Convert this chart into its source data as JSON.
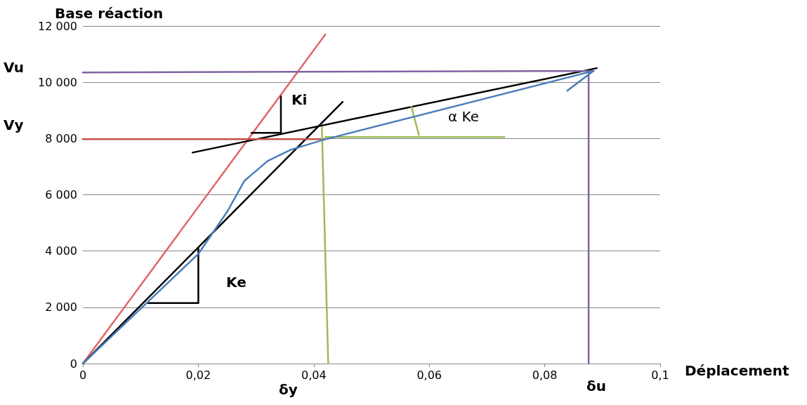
{
  "chart_data": {
    "type": "line",
    "xlabel": "Déplacement",
    "ylabel": "Base réaction",
    "xlim": [
      0,
      0.1
    ],
    "ylim": [
      0,
      12000
    ],
    "xticks": [
      0,
      {
        "value": 0.02,
        "label": "0,02"
      },
      {
        "value": 0.04,
        "label": "0,04"
      },
      {
        "value": 0.06,
        "label": "0,06"
      },
      {
        "value": 0.08,
        "label": "0,08"
      },
      {
        "value": 0.1,
        "label": "0,1"
      }
    ],
    "yticks": [
      0,
      {
        "value": 2000,
        "label": "2 000"
      },
      {
        "value": 4000,
        "label": "4 000"
      },
      {
        "value": 6000,
        "label": "6 000"
      },
      {
        "value": 8000,
        "label": "8 000"
      },
      {
        "value": 10000,
        "label": "10 000"
      },
      {
        "value": 12000,
        "label": "12 000"
      }
    ],
    "grid": "y",
    "marker": "none",
    "line_style": "solid",
    "series": [
      {
        "color": "#e06666",
        "x": [
          0,
          0.042
        ],
        "values": [
          0,
          11700
        ]
      },
      {
        "color": "#000000",
        "x": [
          0,
          0.045
        ],
        "values": [
          0,
          9300
        ]
      },
      {
        "color": "#000000",
        "x": [
          0.019,
          0.089
        ],
        "values": [
          7500,
          10500
        ]
      },
      {
        "color": "#c0504d",
        "x": [
          0,
          0.042
        ],
        "values": [
          7980,
          7980
        ]
      },
      {
        "color": "#9bbb59",
        "x": [
          0.042,
          0.073
        ],
        "values": [
          8050,
          8050
        ]
      },
      {
        "color": "#9bbb59",
        "x": [
          0.0414,
          0.0425
        ],
        "values": [
          8400,
          0
        ]
      },
      {
        "color": "#9bbb59",
        "x": [
          0.0569,
          0.0582
        ],
        "values": [
          9130,
          8130
        ]
      },
      {
        "color": "#8064a2",
        "x": [
          0,
          0.0885
        ],
        "values": [
          10350,
          10400
        ]
      },
      {
        "color": "#8064a2",
        "x": [
          0.0876,
          0.0876
        ],
        "values": [
          10400,
          0
        ]
      },
      {
        "color": "#000000",
        "x": [
          0.0112,
          0.02,
          0.02
        ],
        "values": [
          2150,
          2150,
          4100
        ]
      },
      {
        "color": "#000000",
        "x": [
          0.0292,
          0.0343,
          0.0343
        ],
        "values": [
          8200,
          8200,
          9500
        ]
      },
      {
        "color": "#4a7ebb",
        "x": [
          0,
          0.01,
          0.02,
          0.025,
          0.028,
          0.032,
          0.036,
          0.0416,
          0.0884,
          0.0839
        ],
        "values": [
          0,
          1950,
          3900,
          5400,
          6500,
          7200,
          7600,
          7950,
          10400,
          9700
        ]
      }
    ],
    "annotations": [
      "Vu",
      "Vy",
      "δy",
      "δu",
      "Ki",
      "Ke",
      "α Ke"
    ]
  }
}
